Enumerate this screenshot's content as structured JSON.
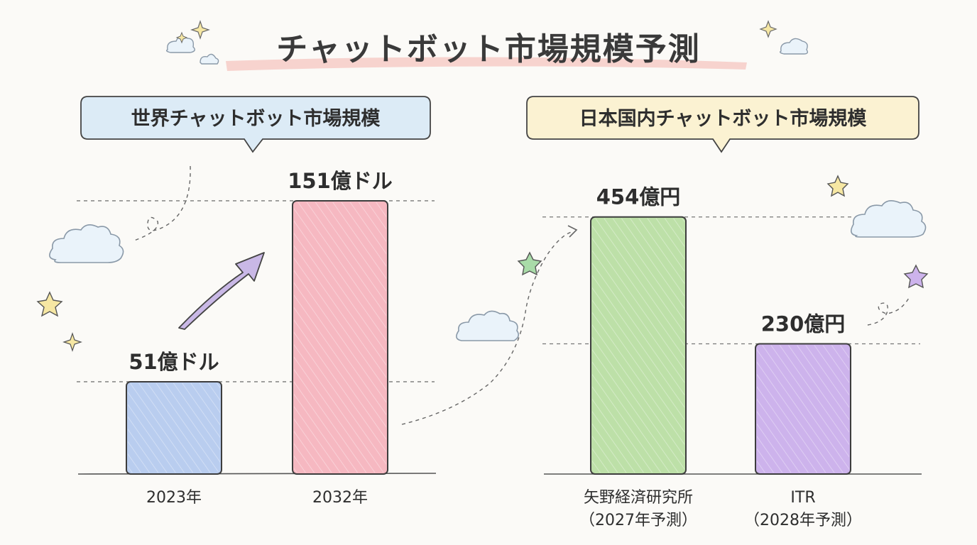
{
  "main_title": "チャットボット市場規模予測",
  "colors": {
    "bar_2023": "#b9cdef",
    "bar_2032": "#f6b8c1",
    "bar_yano": "#bde0a8",
    "bar_itr": "#cdb3ec",
    "bubble_left": "#dcebf6",
    "bubble_right": "#fbf2d2",
    "title_highlight": "#f6c6c0",
    "arrow_fill": "#c9b8e6"
  },
  "chart_data": [
    {
      "type": "bar",
      "title": "世界チャットボット市場規模",
      "categories": [
        "2023年",
        "2032年"
      ],
      "values": [
        51,
        151
      ],
      "value_labels": [
        "51億ドル",
        "151億ドル"
      ],
      "unit": "億ドル",
      "ylim": [
        0,
        160
      ],
      "grid": false
    },
    {
      "type": "bar",
      "title": "日本国内チャットボット市場規模",
      "categories": [
        [
          "矢野経済研究所",
          "（2027年予測）"
        ],
        [
          "ITR",
          "（2028年予測）"
        ]
      ],
      "values": [
        454,
        230
      ],
      "value_labels": [
        "454億円",
        "230億円"
      ],
      "unit": "億円",
      "ylim": [
        0,
        480
      ],
      "grid": false
    }
  ]
}
